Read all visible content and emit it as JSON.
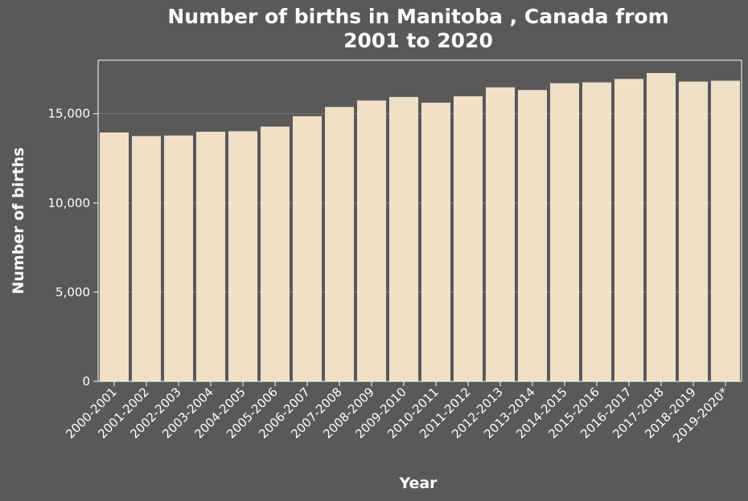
{
  "chart_data": {
    "type": "bar",
    "title": "Number of births in Manitoba , Canada from 2001 to 2020",
    "title_lines": [
      "Number of births in Manitoba , Canada from",
      "2001 to 2020"
    ],
    "xlabel": "Year",
    "ylabel": "Number of births",
    "categories": [
      "2000-2001",
      "2001-2002",
      "2002-2003",
      "2003-2004",
      "2004-2005",
      "2005-2006",
      "2006-2007",
      "2007-2008",
      "2008-2009",
      "2009-2010",
      "2010-2011",
      "2011-2012",
      "2012-2013",
      "2013-2014",
      "2014-2015",
      "2015-2016",
      "2016-2017",
      "2017-2018",
      "2018-2019",
      "2019-2020*"
    ],
    "values": [
      13950,
      13750,
      13780,
      13990,
      14020,
      14280,
      14860,
      15380,
      15740,
      15940,
      15620,
      15980,
      16480,
      16330,
      16710,
      16760,
      16950,
      17280,
      16800,
      16850
    ],
    "ylim": [
      0,
      18000
    ],
    "yticks": [
      0,
      5000,
      10000,
      15000
    ],
    "ytick_labels": [
      "0",
      "5,000",
      "10,000",
      "15,000"
    ],
    "grid": true,
    "colors": {
      "background": "#595959",
      "bar": "#f0e0c8",
      "text": "#ffffff",
      "grid": "#7a7a7a"
    }
  }
}
